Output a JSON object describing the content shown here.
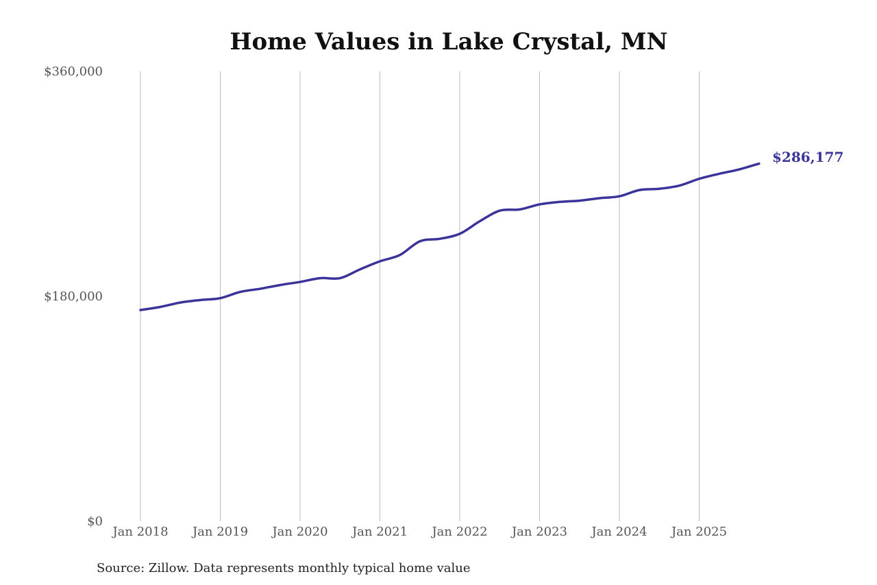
{
  "chart_data": {
    "type": "line",
    "title": "Home Values in Lake Crystal, MN",
    "xlabel": "",
    "ylabel": "",
    "ylim": [
      0,
      360000
    ],
    "y_ticks": [
      "$0",
      "$180,000",
      "$360,000"
    ],
    "y_tick_values": [
      0,
      180000,
      360000
    ],
    "x_ticks": [
      "Jan 2018",
      "Jan 2019",
      "Jan 2020",
      "Jan 2021",
      "Jan 2022",
      "Jan 2023",
      "Jan 2024",
      "Jan 2025"
    ],
    "x_tick_dates": [
      "2018-01",
      "2019-01",
      "2020-01",
      "2021-01",
      "2022-01",
      "2023-01",
      "2024-01",
      "2025-01"
    ],
    "grid": "vertical",
    "line_color": "#3a3399",
    "series": [
      {
        "x": [
          "2018-01",
          "2018-04",
          "2018-07",
          "2018-10",
          "2019-01",
          "2019-04",
          "2019-07",
          "2019-10",
          "2020-01",
          "2020-04",
          "2020-07",
          "2020-10",
          "2021-01",
          "2021-04",
          "2021-07",
          "2021-10",
          "2022-01",
          "2022-04",
          "2022-07",
          "2022-10",
          "2023-01",
          "2023-04",
          "2023-07",
          "2023-10",
          "2024-01",
          "2024-04",
          "2024-07",
          "2024-10",
          "2025-01",
          "2025-04",
          "2025-07",
          "2025-10"
        ],
        "values": [
          169000,
          171500,
          175000,
          177000,
          178500,
          183500,
          186000,
          189000,
          191500,
          194500,
          194500,
          201500,
          208000,
          213000,
          224000,
          226000,
          230000,
          240000,
          248500,
          249500,
          253500,
          255500,
          256500,
          258500,
          260000,
          265000,
          266000,
          268500,
          274000,
          278000,
          281500,
          286177
        ]
      }
    ],
    "end_label": "$286,177",
    "source": "Source: Zillow. Data represents monthly typical home value"
  }
}
